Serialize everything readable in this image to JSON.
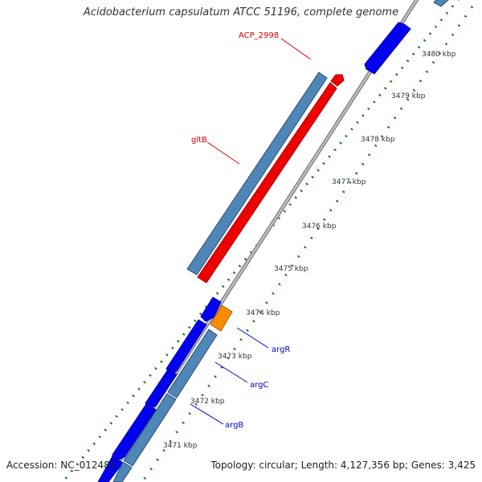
{
  "title": "Acidobacterium capsulatum ATCC 51196, complete genome",
  "footer": {
    "accession": "Accession: NC_012483",
    "topology": "Topology: circular; Length: 4,127,356 bp; Genes: 3,425"
  },
  "ticks": [
    "3480 kbp",
    "3479 kbp",
    "3478 kbp",
    "3477 kbp",
    "3476 kbp",
    "3475 kbp",
    "3474 kbp",
    "3473 kbp",
    "3472 kbp",
    "3471 kbp"
  ],
  "labels": {
    "acp": "ACP_2998",
    "gltb": "gltB",
    "argr": "argR",
    "argc": "argC",
    "argb": "argB"
  },
  "colors": {
    "forward": "#0000ee",
    "cds": "#4f86b8",
    "reverse_gene": "#ee0000",
    "orange": "#ff8c00",
    "backbone": "#8c8c8c",
    "gc": "#1a7a1a",
    "label_red": "#dd0000",
    "label_blue": "#0000cc"
  }
}
